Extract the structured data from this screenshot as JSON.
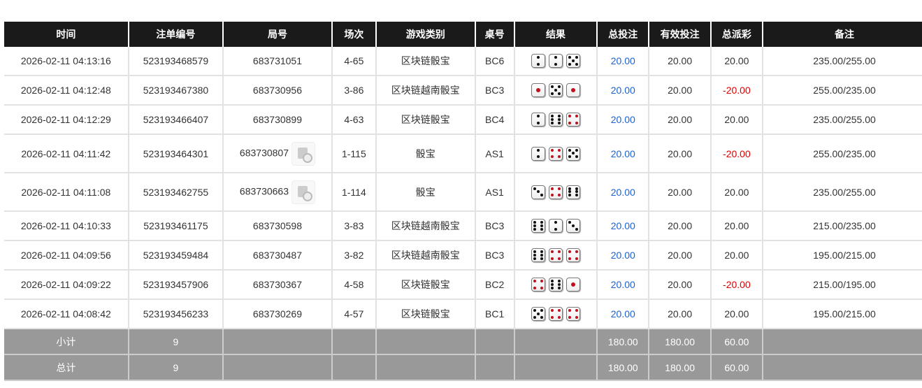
{
  "headers": [
    "时间",
    "注单编号",
    "局号",
    "场次",
    "游戏类别",
    "桌号",
    "结果",
    "总投注",
    "有效投注",
    "总派彩",
    "备注"
  ],
  "rows": [
    {
      "time": "2026-02-11 04:13:16",
      "bet_id": "523193468579",
      "round": "683731051",
      "video": false,
      "session": "4-65",
      "game": "区块链骰宝",
      "table": "BC6",
      "dice": [
        2,
        2,
        5
      ],
      "total": "20.00",
      "valid": "20.00",
      "payout": "20.00",
      "note": "235.00/255.00"
    },
    {
      "time": "2026-02-11 04:12:48",
      "bet_id": "523193467380",
      "round": "683730956",
      "video": false,
      "session": "3-86",
      "game": "区块链越南骰宝",
      "table": "BC3",
      "dice": [
        1,
        5,
        1
      ],
      "total": "20.00",
      "valid": "20.00",
      "payout": "-20.00",
      "note": "255.00/235.00"
    },
    {
      "time": "2026-02-11 04:12:29",
      "bet_id": "523193466407",
      "round": "683730899",
      "video": false,
      "session": "4-63",
      "game": "区块链骰宝",
      "table": "BC4",
      "dice": [
        2,
        6,
        4
      ],
      "total": "20.00",
      "valid": "20.00",
      "payout": "20.00",
      "note": "235.00/255.00"
    },
    {
      "time": "2026-02-11 04:11:42",
      "bet_id": "523193464301",
      "round": "683730807",
      "video": true,
      "session": "1-115",
      "game": "骰宝",
      "table": "AS1",
      "dice": [
        2,
        4,
        5
      ],
      "total": "20.00",
      "valid": "20.00",
      "payout": "-20.00",
      "note": "255.00/235.00"
    },
    {
      "time": "2026-02-11 04:11:08",
      "bet_id": "523193462755",
      "round": "683730663",
      "video": true,
      "session": "1-114",
      "game": "骰宝",
      "table": "AS1",
      "dice": [
        3,
        4,
        6
      ],
      "total": "20.00",
      "valid": "20.00",
      "payout": "20.00",
      "note": "235.00/255.00"
    },
    {
      "time": "2026-02-11 04:10:33",
      "bet_id": "523193461175",
      "round": "683730598",
      "video": false,
      "session": "3-83",
      "game": "区块链越南骰宝",
      "table": "BC3",
      "dice": [
        6,
        2,
        3
      ],
      "total": "20.00",
      "valid": "20.00",
      "payout": "20.00",
      "note": "215.00/235.00"
    },
    {
      "time": "2026-02-11 04:09:56",
      "bet_id": "523193459484",
      "round": "683730487",
      "video": false,
      "session": "3-82",
      "game": "区块链越南骰宝",
      "table": "BC3",
      "dice": [
        6,
        4,
        4
      ],
      "total": "20.00",
      "valid": "20.00",
      "payout": "20.00",
      "note": "195.00/215.00"
    },
    {
      "time": "2026-02-11 04:09:22",
      "bet_id": "523193457906",
      "round": "683730367",
      "video": false,
      "session": "4-58",
      "game": "区块链骰宝",
      "table": "BC2",
      "dice": [
        4,
        6,
        1
      ],
      "total": "20.00",
      "valid": "20.00",
      "payout": "-20.00",
      "note": "215.00/195.00"
    },
    {
      "time": "2026-02-11 04:08:42",
      "bet_id": "523193456233",
      "round": "683730269",
      "video": false,
      "session": "4-57",
      "game": "区块链骰宝",
      "table": "BC1",
      "dice": [
        5,
        4,
        4
      ],
      "total": "20.00",
      "valid": "20.00",
      "payout": "20.00",
      "note": "195.00/215.00"
    }
  ],
  "footer": [
    {
      "label": "小计",
      "count": "9",
      "total": "180.00",
      "valid": "180.00",
      "payout": "60.00"
    },
    {
      "label": "总计",
      "count": "9",
      "total": "180.00",
      "valid": "180.00",
      "payout": "60.00"
    }
  ],
  "colors": {
    "header_bg": "#1a1a1a",
    "footer_bg": "#999999",
    "bet_link": "#1a62d8",
    "negative": "#e00000",
    "red_pip": "#c0101e"
  }
}
